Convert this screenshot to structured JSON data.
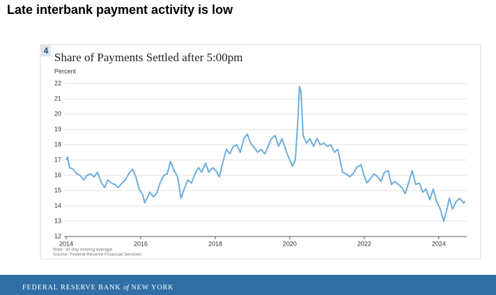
{
  "header": {
    "title": "Late interbank payment activity is low"
  },
  "panel": {
    "number": "4"
  },
  "chart_data": {
    "type": "line",
    "title": "Share of Payments Settled after 5:00pm",
    "ylabel": "Percent",
    "notes": [
      "Note: 30-day moving average",
      "Source: Federal Reserve Financial Services"
    ],
    "color": "#6aaedc",
    "x": [
      2014.0,
      2014.04,
      2014.09,
      2014.19,
      2014.28,
      2014.37,
      2014.47,
      2014.56,
      2014.65,
      2014.75,
      2014.84,
      2014.93,
      2015.03,
      2015.12,
      2015.21,
      2015.31,
      2015.4,
      2015.5,
      2015.59,
      2015.68,
      2015.78,
      2015.87,
      2015.96,
      2016.06,
      2016.11,
      2016.19,
      2016.24,
      2016.34,
      2016.43,
      2016.52,
      2016.62,
      2016.71,
      2016.8,
      2016.9,
      2016.99,
      2017.08,
      2017.18,
      2017.27,
      2017.36,
      2017.46,
      2017.55,
      2017.64,
      2017.74,
      2017.83,
      2017.93,
      2018.02,
      2018.11,
      2018.21,
      2018.3,
      2018.39,
      2018.49,
      2018.58,
      2018.67,
      2018.77,
      2018.86,
      2018.95,
      2019.05,
      2019.14,
      2019.23,
      2019.33,
      2019.42,
      2019.51,
      2019.61,
      2019.7,
      2019.79,
      2019.89,
      2019.98,
      2020.07,
      2020.15,
      2020.22,
      2020.26,
      2020.3,
      2020.36,
      2020.45,
      2020.54,
      2020.64,
      2020.73,
      2020.82,
      2020.92,
      2021.01,
      2021.1,
      2021.2,
      2021.29,
      2021.35,
      2021.42,
      2021.51,
      2021.61,
      2021.7,
      2021.79,
      2021.91,
      2021.98,
      2022.07,
      2022.17,
      2022.26,
      2022.36,
      2022.45,
      2022.54,
      2022.64,
      2022.73,
      2022.82,
      2022.92,
      2023.01,
      2023.1,
      2023.2,
      2023.29,
      2023.38,
      2023.48,
      2023.57,
      2023.66,
      2023.76,
      2023.85,
      2023.94,
      2024.04,
      2024.13,
      2024.22,
      2024.28,
      2024.37,
      2024.47,
      2024.56,
      2024.66,
      2024.71
    ],
    "values": [
      17.0,
      17.2,
      16.5,
      16.4,
      16.1,
      16.0,
      15.7,
      16.0,
      16.1,
      15.9,
      16.2,
      15.6,
      15.2,
      15.7,
      15.5,
      15.4,
      15.2,
      15.5,
      15.7,
      16.1,
      16.4,
      15.9,
      15.1,
      14.7,
      14.2,
      14.6,
      14.9,
      14.6,
      14.8,
      15.5,
      16.0,
      16.1,
      16.9,
      16.3,
      15.9,
      14.5,
      15.2,
      15.7,
      15.5,
      16.1,
      16.5,
      16.2,
      16.8,
      16.2,
      16.5,
      16.3,
      15.9,
      16.9,
      17.7,
      17.4,
      17.9,
      18.0,
      17.5,
      18.4,
      18.7,
      18.1,
      17.8,
      17.5,
      17.7,
      17.4,
      17.9,
      18.4,
      18.6,
      17.9,
      18.4,
      17.7,
      17.1,
      16.6,
      17.0,
      19.7,
      21.8,
      21.5,
      18.6,
      18.1,
      18.4,
      17.9,
      18.4,
      18.0,
      18.1,
      17.9,
      18.0,
      17.5,
      17.7,
      17.0,
      16.2,
      16.1,
      15.9,
      16.1,
      16.5,
      16.7,
      16.1,
      15.5,
      15.8,
      16.1,
      15.9,
      15.6,
      16.2,
      16.3,
      15.4,
      15.6,
      15.4,
      15.2,
      14.8,
      15.6,
      16.3,
      15.4,
      15.5,
      14.9,
      15.1,
      14.4,
      15.1,
      14.3,
      13.8,
      13.0,
      13.8,
      14.5,
      13.8,
      14.3,
      14.5,
      14.2,
      14.3
    ],
    "xlim": [
      2014,
      2024.75
    ],
    "ylim": [
      12,
      22
    ],
    "xticks": [
      2014,
      2016,
      2018,
      2020,
      2022,
      2024
    ],
    "yticks": [
      12,
      13,
      14,
      15,
      16,
      17,
      18,
      19,
      20,
      21,
      22
    ],
    "grid": true
  },
  "footer": {
    "brand": [
      "FEDERAL RESERVE BANK",
      "of",
      "NEW YORK"
    ]
  }
}
